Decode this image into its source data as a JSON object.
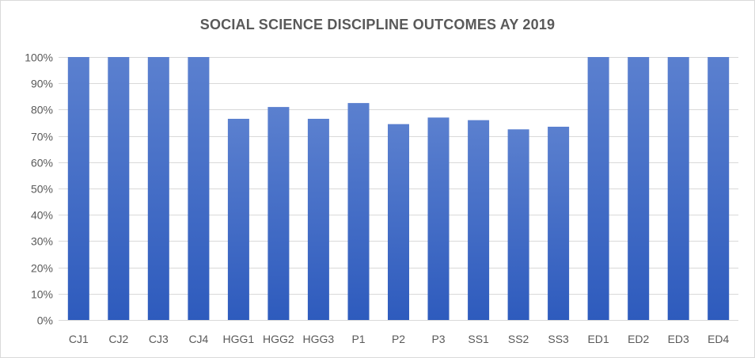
{
  "chart_data": {
    "type": "bar",
    "title": "SOCIAL SCIENCE DISCIPLINE OUTCOMES AY 2019",
    "xlabel": "",
    "ylabel": "",
    "categories": [
      "CJ1",
      "CJ2",
      "CJ3",
      "CJ4",
      "HGG1",
      "HGG2",
      "HGG3",
      "P1",
      "P2",
      "P3",
      "SS1",
      "SS2",
      "SS3",
      "ED1",
      "ED2",
      "ED3",
      "ED4"
    ],
    "values": [
      100,
      100,
      100,
      100,
      76.5,
      81,
      76.5,
      82.5,
      74.5,
      77,
      76,
      72.5,
      73.5,
      100,
      100,
      100,
      100
    ],
    "ylim": [
      0,
      100
    ],
    "yticks": [
      "0%",
      "10%",
      "20%",
      "30%",
      "40%",
      "50%",
      "60%",
      "70%",
      "80%",
      "90%",
      "100%"
    ],
    "grid": true,
    "legend": "none",
    "colors": {
      "bar_top": "#5b80cf",
      "bar_bottom": "#2e5bbd",
      "grid": "#d9d9d9",
      "text": "#595959"
    }
  }
}
